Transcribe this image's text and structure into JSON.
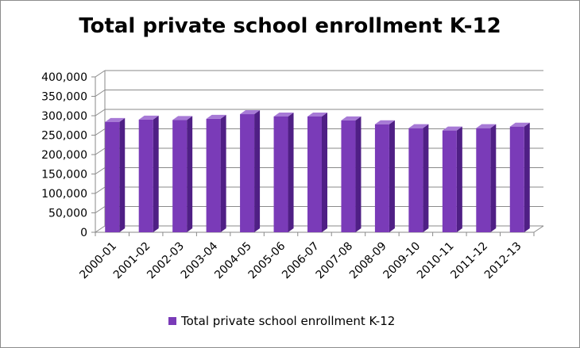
{
  "chart_data": {
    "type": "bar",
    "title": "Total private school enrollment K-12",
    "categories": [
      "2000-01",
      "2001-02",
      "2002-03",
      "2003-04",
      "2004-05",
      "2005-06",
      "2006-07",
      "2007-08",
      "2008-09",
      "2009-10",
      "2010-11",
      "2011-12",
      "2012-13"
    ],
    "series": [
      {
        "name": "Total private school enrollment K-12",
        "values": [
          284000,
          290000,
          289000,
          292000,
          304000,
          298000,
          298000,
          288000,
          278000,
          268000,
          262000,
          268000,
          272000
        ]
      }
    ],
    "ylim": [
      0,
      400000
    ],
    "yticks": [
      "0",
      "50,000",
      "100,000",
      "150,000",
      "200,000",
      "250,000",
      "300,000",
      "350,000",
      "400,000"
    ],
    "grid": true,
    "legend_position": "bottom",
    "style": "3d-column",
    "colors": {
      "bar_front": "#7a3bb8",
      "bar_side": "#4f1f85",
      "bar_top": "#a77ad6",
      "grid": "#8a8a8a",
      "wall": "#ffffff"
    }
  }
}
